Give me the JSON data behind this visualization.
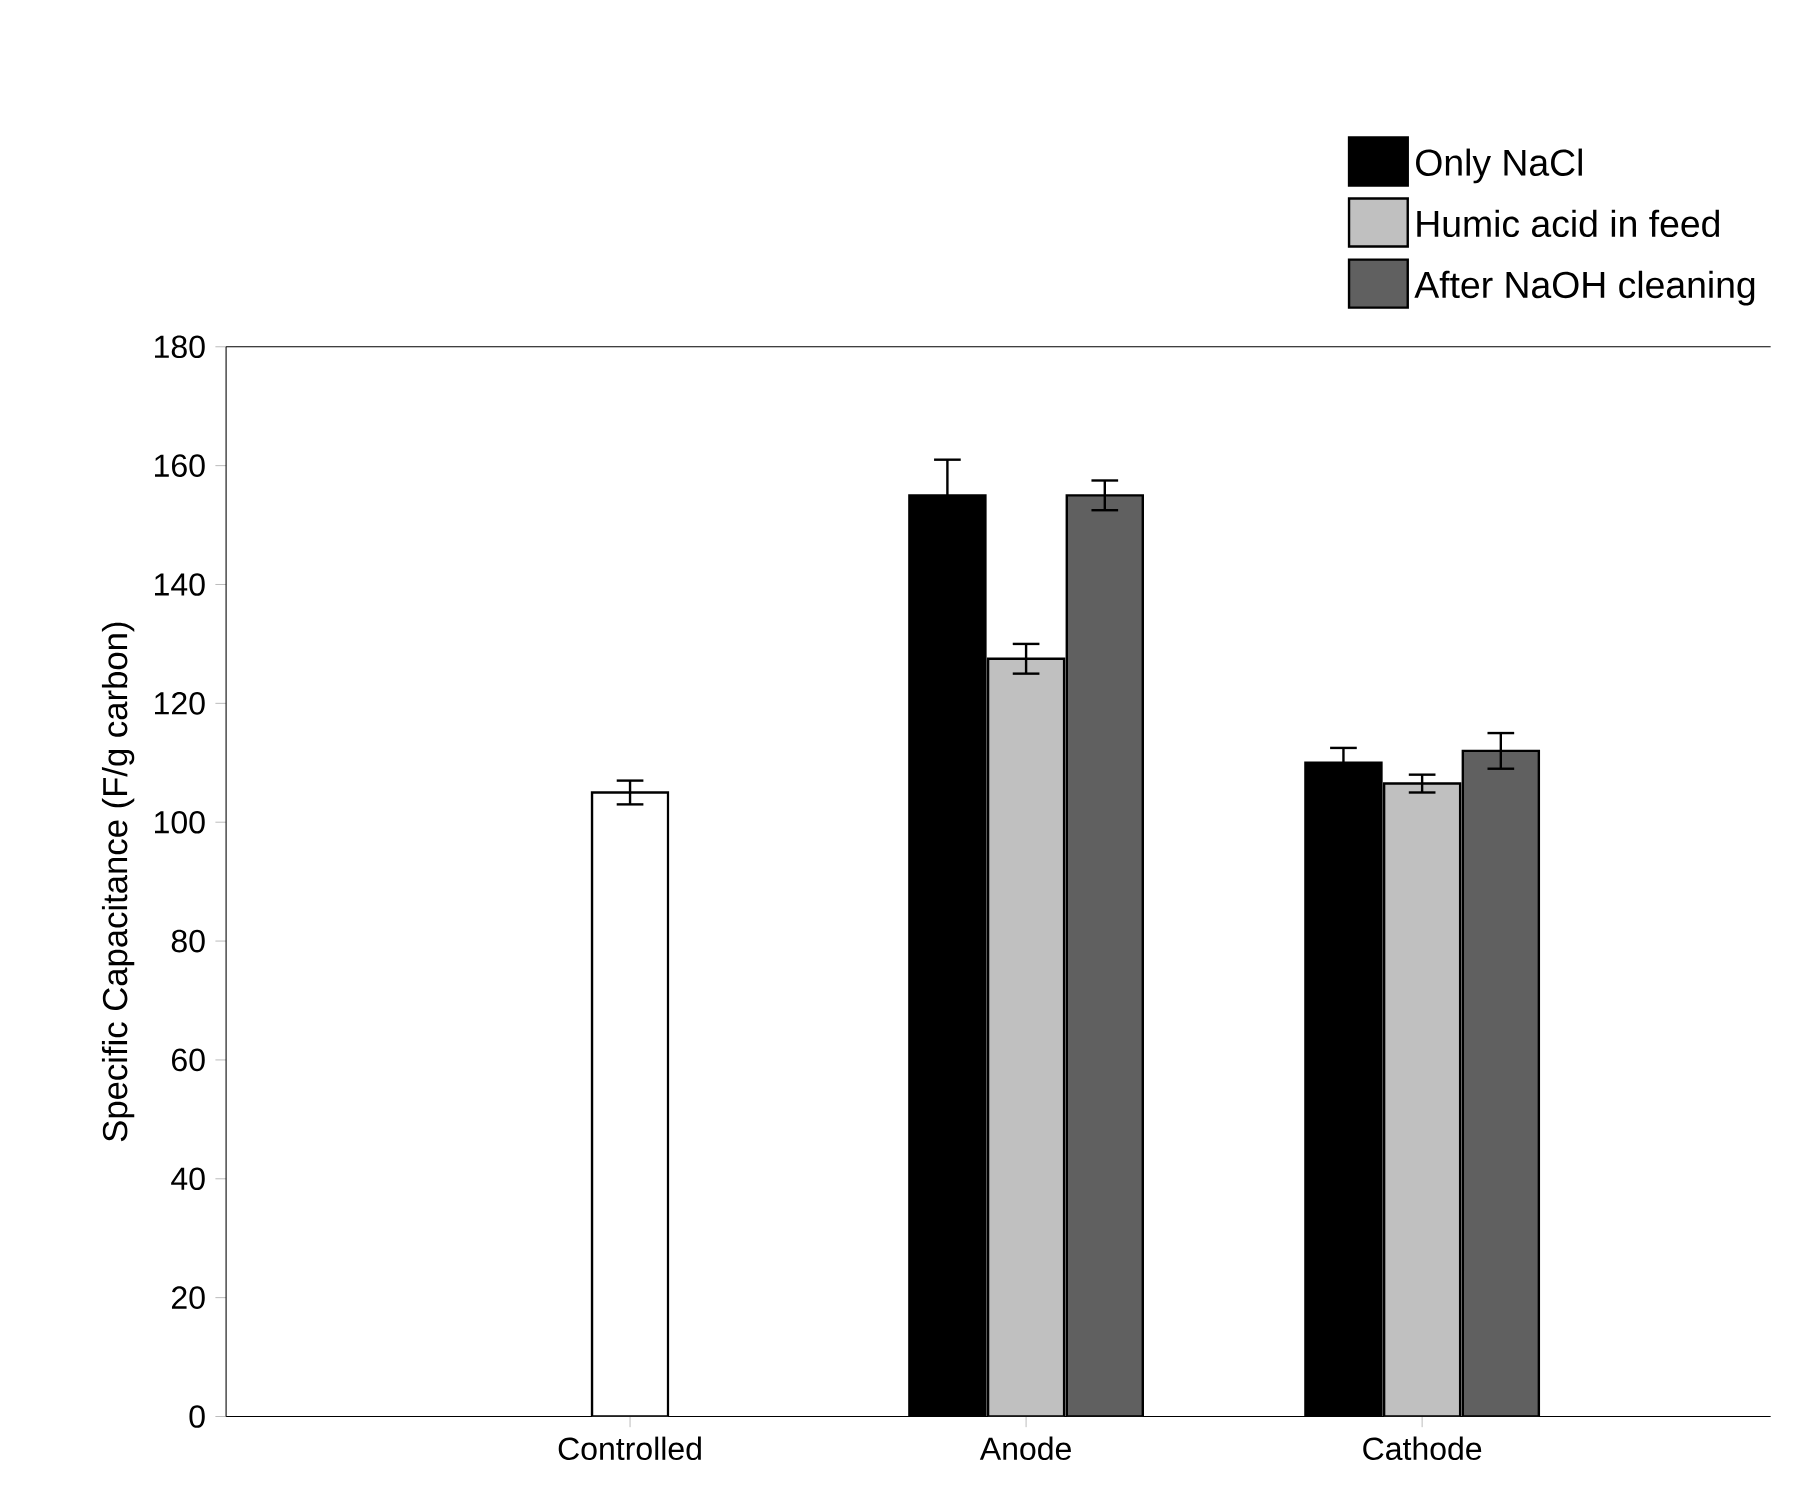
{
  "chart_data": {
    "type": "bar",
    "ylabel": "Specific Capacitance (F/g carbon)",
    "categories": [
      "Controlled",
      "Anode",
      "Cathode"
    ],
    "series": [
      {
        "name": "Only NaCl",
        "color": "#000000",
        "values": [
          null,
          155,
          110
        ],
        "errors": [
          null,
          6,
          2.5
        ]
      },
      {
        "name": "Humic acid in feed",
        "color": "#c0c0c0",
        "values": [
          null,
          127.5,
          106.5
        ],
        "errors": [
          null,
          2.5,
          1.5
        ]
      },
      {
        "name": "After NaOH cleaning",
        "color": "#606060",
        "values": [
          null,
          155,
          112
        ],
        "errors": [
          null,
          2.5,
          3
        ]
      },
      {
        "color": "#ffffff",
        "values": [
          105,
          null,
          null
        ],
        "errors": [
          2,
          null,
          null
        ]
      }
    ],
    "ylim": [
      0,
      180
    ],
    "yticks": [
      0,
      20,
      40,
      60,
      80,
      100,
      120,
      140,
      160,
      180
    ],
    "legend": "top right",
    "grid": false
  }
}
